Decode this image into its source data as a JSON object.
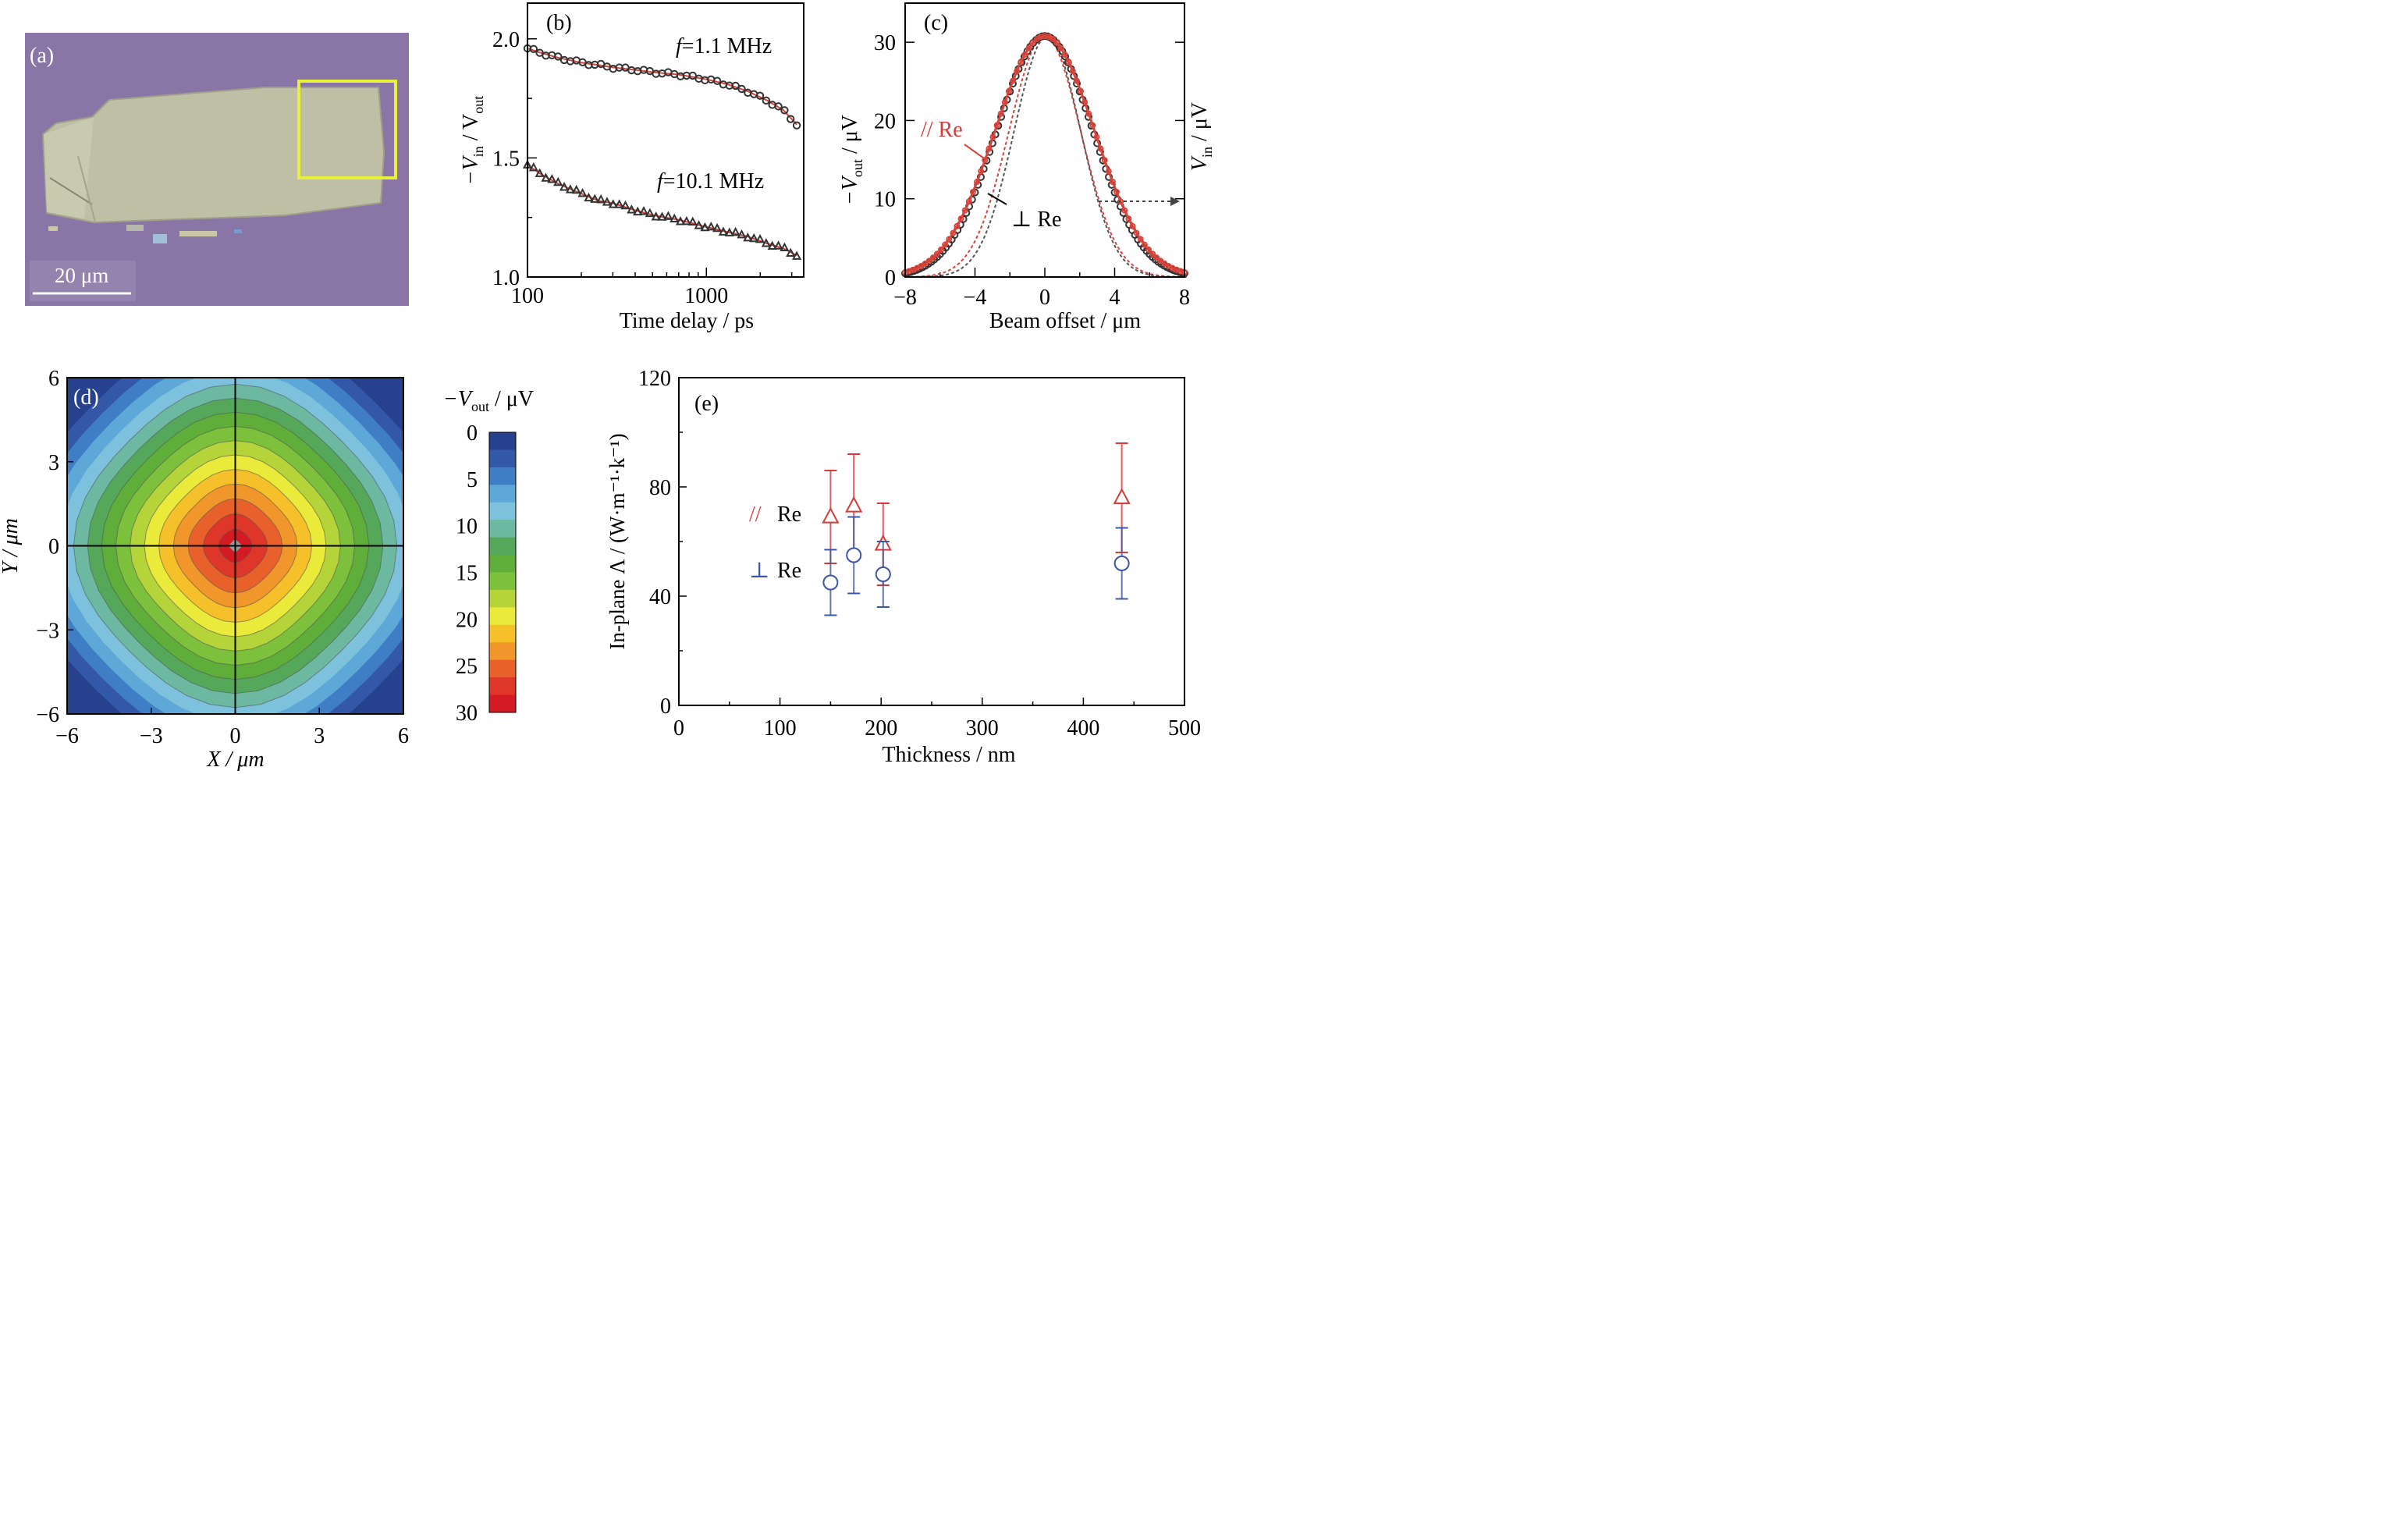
{
  "panels": {
    "a": {
      "label": "(a)",
      "scale_bar": "20 μm"
    },
    "b": {
      "label": "(b)"
    },
    "c": {
      "label": "(c)"
    },
    "d": {
      "label": "(d)"
    },
    "e": {
      "label": "(e)"
    }
  },
  "colors": {
    "fit_red": "#d9433a",
    "data_dark": "#333333",
    "par_red": "#d83a3a",
    "perp_blue": "#3d55a6",
    "flake_bg": "#8a77a6",
    "flake": "#bfc0a8",
    "highlight_box": "#e8f03a"
  },
  "chart_data": [
    {
      "panel": "b",
      "type": "scatter",
      "xscale": "log",
      "xlim": [
        100,
        3500
      ],
      "ylim": [
        1.0,
        2.15
      ],
      "xticks": [
        "100",
        "1000"
      ],
      "yticks": [
        "1.0",
        "1.5",
        "2.0"
      ],
      "xlabel": "Time delay / ps",
      "ylabel": {
        "main": "−V",
        "sub1": "in",
        "mid": " / V",
        "sub2": "out"
      },
      "series": [
        {
          "name": "f=1.1 MHz",
          "name_parts": [
            "f",
            "=1.1 MHz"
          ],
          "marker": "circle",
          "x": [
            100,
            120,
            150,
            200,
            250,
            300,
            400,
            500,
            700,
            1000,
            1300,
            1700,
            2200,
            2700,
            3200
          ],
          "y": [
            1.96,
            1.94,
            1.92,
            1.9,
            1.89,
            1.88,
            1.87,
            1.86,
            1.85,
            1.83,
            1.81,
            1.78,
            1.74,
            1.7,
            1.64
          ]
        },
        {
          "name": "f=10.1 MHz",
          "name_parts": [
            "f",
            "=10.1 MHz"
          ],
          "marker": "triangle",
          "x": [
            100,
            120,
            150,
            200,
            250,
            300,
            400,
            500,
            700,
            1000,
            1300,
            1700,
            2200,
            2700,
            3200
          ],
          "y": [
            1.47,
            1.43,
            1.39,
            1.35,
            1.32,
            1.31,
            1.28,
            1.26,
            1.24,
            1.21,
            1.19,
            1.17,
            1.14,
            1.12,
            1.09
          ]
        }
      ]
    },
    {
      "panel": "c",
      "type": "line",
      "xlim": [
        -8,
        8
      ],
      "ylim": [
        0,
        35
      ],
      "xticks": [
        "−8",
        "−4",
        "0",
        "4",
        "8"
      ],
      "yticks": [
        "0",
        "10",
        "20",
        "30"
      ],
      "xlabel": "Beam offset / μm",
      "ylabel": {
        "main": "−V",
        "sub": "out",
        "rest": " / μV"
      },
      "ylabel_right": {
        "main": "V",
        "sub": "in",
        "rest": " / μV"
      },
      "annotations": {
        "par": "// Re",
        "perp": "⊥ Re"
      },
      "peak": 30.8,
      "measured_sigma": 2.85,
      "input_sigma": 2.05
    },
    {
      "panel": "d",
      "type": "heatmap",
      "xlim": [
        -6,
        6
      ],
      "ylim": [
        -6,
        6
      ],
      "xticks": [
        "−6",
        "−3",
        "0",
        "3",
        "6"
      ],
      "yticks": [
        "6",
        "3",
        "0",
        "−3",
        "−6"
      ],
      "xlabel": "X / μm",
      "ylabel": "Y / μm",
      "colorbar": {
        "title": {
          "main": "−V",
          "sub": "out",
          "rest": " / μV"
        },
        "ticks": [
          "0",
          "5",
          "10",
          "15",
          "20",
          "25",
          "30"
        ],
        "colors": [
          "#27418f",
          "#3358a8",
          "#3f7dc4",
          "#5ea8d8",
          "#7dc1dd",
          "#6cb8a0",
          "#55a85a",
          "#5fae3a",
          "#7cc03c",
          "#b5d43a",
          "#eaea3a",
          "#f6c02a",
          "#f0962a",
          "#e8602a",
          "#de3628",
          "#d41a22"
        ]
      }
    },
    {
      "panel": "e",
      "type": "scatter",
      "xlim": [
        0,
        500
      ],
      "ylim": [
        0,
        120
      ],
      "xticks": [
        "0",
        "100",
        "200",
        "300",
        "400",
        "500"
      ],
      "yticks": [
        "0",
        "40",
        "80",
        "120"
      ],
      "xlabel": "Thickness / nm",
      "ylabel": "In-plane Λ / (W·m⁻¹·k⁻¹)",
      "legend": {
        "par": "Re",
        "perp": "Re"
      },
      "series": [
        {
          "name": "// Re",
          "marker": "triangle",
          "x": [
            150,
            173,
            202,
            438
          ],
          "y": [
            69,
            73,
            59,
            76
          ],
          "err": [
            17,
            19,
            15,
            20
          ]
        },
        {
          "name": "⊥ Re",
          "marker": "circle",
          "x": [
            150,
            173,
            202,
            438
          ],
          "y": [
            45,
            55,
            48,
            52
          ],
          "err": [
            12,
            14,
            12,
            13
          ]
        }
      ]
    }
  ]
}
